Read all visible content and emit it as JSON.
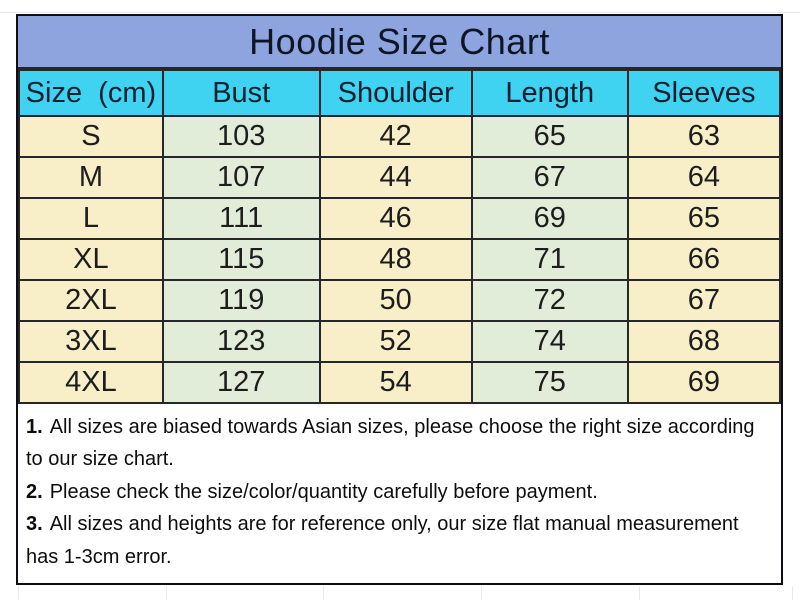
{
  "title": "Hoodie Size Chart",
  "size_table": {
    "columns": [
      "Size  (cm)",
      "Bust",
      "Shoulder",
      "Length",
      "Sleeves"
    ],
    "rows": [
      [
        "S",
        "103",
        "42",
        "65",
        "63"
      ],
      [
        "M",
        "107",
        "44",
        "67",
        "64"
      ],
      [
        "L",
        "111",
        "46",
        "69",
        "65"
      ],
      [
        "XL",
        "115",
        "48",
        "71",
        "66"
      ],
      [
        "2XL",
        "119",
        "50",
        "72",
        "67"
      ],
      [
        "3XL",
        "123",
        "52",
        "74",
        "68"
      ],
      [
        "4XL",
        "127",
        "54",
        "75",
        "69"
      ]
    ]
  },
  "notes": [
    {
      "num": "1.",
      "text": "All sizes are biased towards Asian sizes, please choose the right size according to our size chart."
    },
    {
      "num": "2.",
      "text": "Please check the size/color/quantity carefully before payment."
    },
    {
      "num": "3.",
      "text": "All sizes and heights are for reference only, our size flat manual measurement has 1-3cm error."
    }
  ],
  "colors": {
    "title_bg": "#8da4de",
    "header_bg": "#3fd2f1",
    "column_cream": "#f8efc9",
    "column_green": "#e1ecd9",
    "grid_border": "#26262b",
    "outer_border": "#0e0e14",
    "title_text": "#0d1526",
    "header_text": "#101f30",
    "cell_text": "#1d1d1d",
    "note_text": "#0d0d0d",
    "faint_gridline": "#e9e9e9"
  }
}
